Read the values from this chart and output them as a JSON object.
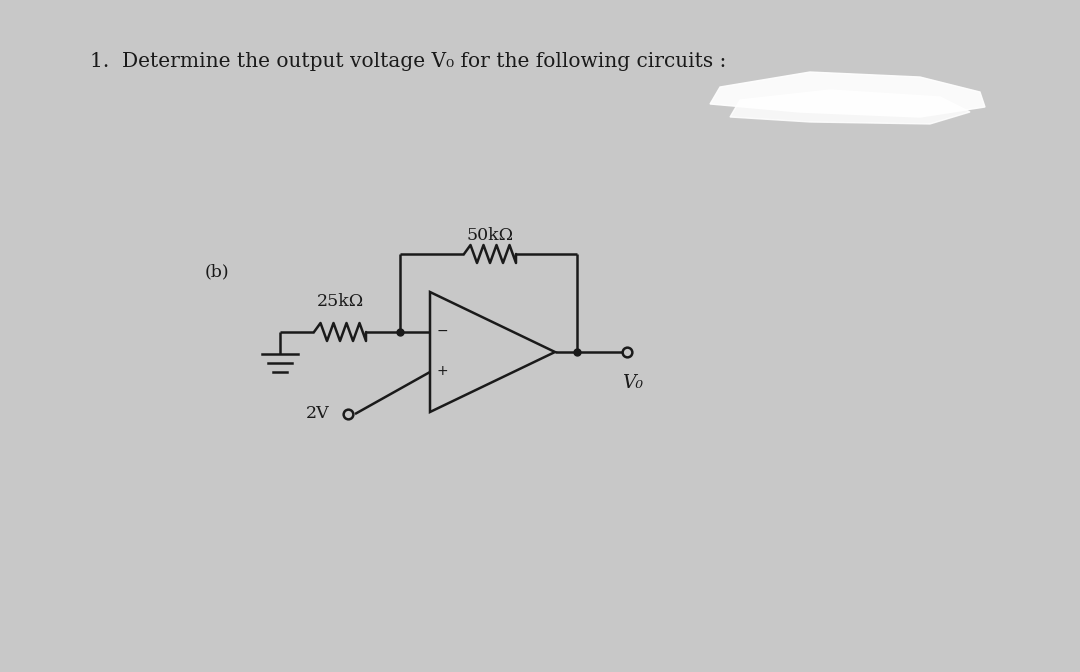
{
  "bg_color": "#c8c8c8",
  "line_color": "#1a1a1a",
  "title_text": "1.  Determine the output voltage V₀ for the following circuits :",
  "label_b": "(b)",
  "label_25k": "25kΩ",
  "label_50k": "50kΩ",
  "label_2v": "2V",
  "label_vo": "V₀",
  "title_fontsize": 14.5,
  "label_fontsize": 12.5,
  "lw": 1.8
}
